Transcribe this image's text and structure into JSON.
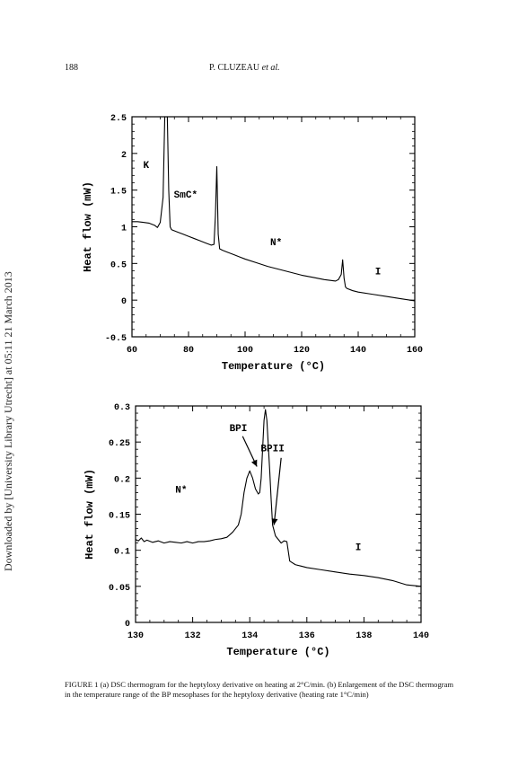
{
  "header": {
    "page_number": "188",
    "authors": "P. CLUZEAU",
    "et_al": "et al."
  },
  "side_note": "Downloaded by [University Library Utrecht] at 05:11 21 March 2013",
  "caption": "FIGURE 1 (a) DSC thermogram for the heptyloxy derivative on heating at 2°C/min. (b) Enlargement of the DSC thermogram in the temperature range of the BP mesophases for the heptyloxy derivative (heating rate 1°C/min)",
  "chart_data": [
    {
      "type": "line",
      "xlabel": "Temperature (°C)",
      "ylabel": "Heat flow (mW)",
      "xlim": [
        60,
        160
      ],
      "ylim": [
        -0.5,
        2.5
      ],
      "x_ticks": [
        "60",
        "80",
        "100",
        "120",
        "140",
        "160"
      ],
      "y_ticks": [
        "-0.5",
        "0",
        "0.5",
        "1",
        "1.5",
        "2",
        "2.5"
      ],
      "annotations": [
        {
          "text": "K",
          "x": 65,
          "y": 1.8
        },
        {
          "text": "SmC*",
          "x": 79,
          "y": 1.4
        },
        {
          "text": "N*",
          "x": 111,
          "y": 0.75
        },
        {
          "text": "I",
          "x": 147,
          "y": 0.35
        }
      ],
      "series": [
        {
          "x": [
            60,
            62,
            64,
            66,
            68,
            69,
            70,
            71,
            71.6,
            72,
            72.5,
            73,
            73.5,
            74,
            76,
            78,
            80,
            82,
            84,
            86,
            88,
            89,
            89.5,
            90,
            90.5,
            91,
            92,
            94,
            96,
            98,
            100,
            104,
            108,
            112,
            116,
            120,
            124,
            128,
            132,
            133,
            134,
            134.5,
            135,
            135.5,
            136,
            138,
            140,
            145,
            150,
            155,
            160
          ],
          "y": [
            1.07,
            1.07,
            1.06,
            1.05,
            1.02,
            0.99,
            1.06,
            1.4,
            2.5,
            2.5,
            2.5,
            1.5,
            1.0,
            0.96,
            0.93,
            0.9,
            0.87,
            0.84,
            0.81,
            0.78,
            0.75,
            0.76,
            1.15,
            1.82,
            0.9,
            0.7,
            0.68,
            0.65,
            0.62,
            0.59,
            0.56,
            0.51,
            0.46,
            0.42,
            0.38,
            0.34,
            0.31,
            0.28,
            0.26,
            0.28,
            0.35,
            0.55,
            0.3,
            0.18,
            0.16,
            0.13,
            0.11,
            0.08,
            0.05,
            0.02,
            -0.01
          ]
        }
      ]
    },
    {
      "type": "line",
      "xlabel": "Temperature (°C)",
      "ylabel": "Heat flow (mW)",
      "xlim": [
        130,
        140
      ],
      "ylim": [
        0,
        0.3
      ],
      "x_ticks": [
        "130",
        "132",
        "134",
        "136",
        "138",
        "140"
      ],
      "y_ticks": [
        "0",
        "0.05",
        "0.1",
        "0.15",
        "0.2",
        "0.25",
        "0.3"
      ],
      "annotations": [
        {
          "text": "N*",
          "x": 131.6,
          "y": 0.18
        },
        {
          "text": "BPI",
          "x": 133.6,
          "y": 0.265
        },
        {
          "text": "BPII",
          "x": 134.8,
          "y": 0.237
        },
        {
          "text": "I",
          "x": 137.8,
          "y": 0.1
        }
      ],
      "series": [
        {
          "x": [
            130,
            130.1,
            130.2,
            130.3,
            130.4,
            130.6,
            130.8,
            131,
            131.2,
            131.4,
            131.6,
            131.8,
            132,
            132.2,
            132.4,
            132.6,
            132.8,
            133,
            133.2,
            133.4,
            133.6,
            133.7,
            133.8,
            133.9,
            134,
            134.1,
            134.2,
            134.3,
            134.35,
            134.4,
            134.5,
            134.55,
            134.6,
            134.7,
            134.75,
            134.8,
            134.9,
            135,
            135.1,
            135.2,
            135.3,
            135.4,
            135.6,
            135.8,
            136,
            136.5,
            137,
            137.5,
            138,
            138.5,
            139,
            139.5,
            140
          ],
          "y": [
            0.115,
            0.113,
            0.117,
            0.112,
            0.114,
            0.111,
            0.113,
            0.11,
            0.112,
            0.111,
            0.11,
            0.112,
            0.11,
            0.112,
            0.112,
            0.113,
            0.115,
            0.116,
            0.118,
            0.125,
            0.135,
            0.15,
            0.18,
            0.2,
            0.21,
            0.2,
            0.185,
            0.178,
            0.18,
            0.2,
            0.28,
            0.295,
            0.28,
            0.21,
            0.17,
            0.135,
            0.12,
            0.115,
            0.11,
            0.113,
            0.112,
            0.085,
            0.08,
            0.078,
            0.076,
            0.073,
            0.07,
            0.067,
            0.065,
            0.062,
            0.058,
            0.052,
            0.05
          ]
        }
      ]
    }
  ]
}
